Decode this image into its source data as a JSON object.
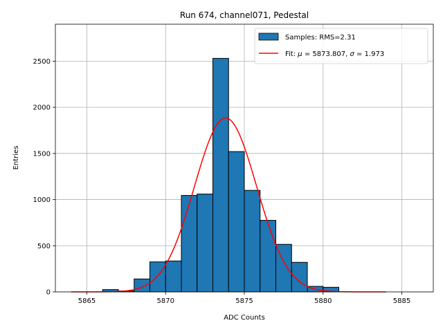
{
  "chart_data": {
    "type": "bar",
    "title": "Run 674, channel071, Pedestal",
    "xlabel": "ADC Counts",
    "ylabel": "Entries",
    "xlim": [
      5863,
      5887
    ],
    "ylim": [
      0,
      2900
    ],
    "x_ticks": [
      5865,
      5870,
      5875,
      5880,
      5885
    ],
    "y_ticks": [
      0,
      500,
      1000,
      1500,
      2000,
      2500
    ],
    "grid": true,
    "legend_position": "top-right",
    "bin_width": 1,
    "bins": [
      {
        "left": 5866,
        "count": 25
      },
      {
        "left": 5867,
        "count": 10
      },
      {
        "left": 5868,
        "count": 140
      },
      {
        "left": 5869,
        "count": 325
      },
      {
        "left": 5870,
        "count": 335
      },
      {
        "left": 5871,
        "count": 1045
      },
      {
        "left": 5872,
        "count": 1060
      },
      {
        "left": 5873,
        "count": 2530
      },
      {
        "left": 5874,
        "count": 1520
      },
      {
        "left": 5875,
        "count": 1100
      },
      {
        "left": 5876,
        "count": 775
      },
      {
        "left": 5877,
        "count": 515
      },
      {
        "left": 5878,
        "count": 320
      },
      {
        "left": 5879,
        "count": 60
      },
      {
        "left": 5880,
        "count": 50
      }
    ],
    "fit": {
      "mu": 5873.807,
      "sigma": 1.973,
      "peak": 1885,
      "x_range": [
        5864,
        5884
      ]
    },
    "series": [
      {
        "name": "Samples: RMS=2.31",
        "color": "#1f77b4",
        "kind": "histogram"
      },
      {
        "name": "Fit: ",
        "mu_symbol": "μ",
        "mu_text": " = 5873.807, ",
        "sigma_symbol": "σ",
        "sigma_text": " = 1.973",
        "color": "#ff0000",
        "kind": "line"
      }
    ]
  }
}
